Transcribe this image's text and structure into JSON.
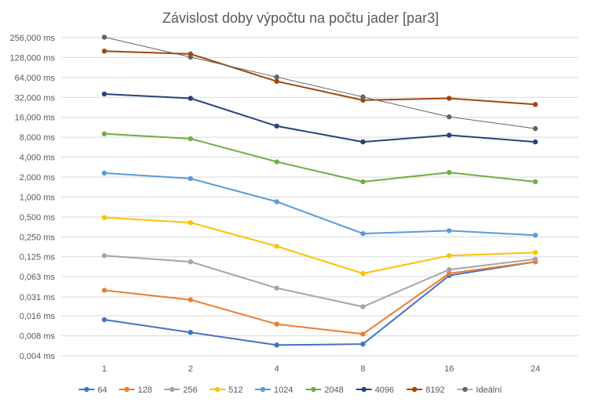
{
  "chart_data": {
    "type": "line",
    "title": "Závislost doby výpočtu na počtu jader [par3]",
    "yscale": "log2",
    "categories": [
      "1",
      "2",
      "4",
      "8",
      "16",
      "24"
    ],
    "y_ticks": [
      {
        "value": 0.004,
        "label": "0,004 ms"
      },
      {
        "value": 0.008,
        "label": "0,008 ms"
      },
      {
        "value": 0.016,
        "label": "0,016 ms"
      },
      {
        "value": 0.031,
        "label": "0,031 ms"
      },
      {
        "value": 0.063,
        "label": "0,063 ms"
      },
      {
        "value": 0.125,
        "label": "0,125 ms"
      },
      {
        "value": 0.25,
        "label": "0,250 ms"
      },
      {
        "value": 0.5,
        "label": "0,500 ms"
      },
      {
        "value": 1,
        "label": "1,000 ms"
      },
      {
        "value": 2,
        "label": "2,000 ms"
      },
      {
        "value": 4,
        "label": "4,000 ms"
      },
      {
        "value": 8,
        "label": "8,000 ms"
      },
      {
        "value": 16,
        "label": "16,000 ms"
      },
      {
        "value": 32,
        "label": "32,000 ms"
      },
      {
        "value": 64,
        "label": "64,000 ms"
      },
      {
        "value": 128,
        "label": "128,000 ms"
      },
      {
        "value": 256,
        "label": "256,000 ms"
      }
    ],
    "ylim": [
      0.004,
      256
    ],
    "grid": true,
    "legend_position": "bottom",
    "series": [
      {
        "name": "64",
        "color": "#4472c4",
        "width": 2,
        "values": [
          0.014,
          0.009,
          0.0058,
          0.006,
          0.065,
          0.105
        ]
      },
      {
        "name": "128",
        "color": "#ed7d31",
        "width": 2,
        "values": [
          0.039,
          0.028,
          0.012,
          0.0085,
          0.07,
          0.105
        ]
      },
      {
        "name": "256",
        "color": "#a5a5a5",
        "width": 2,
        "values": [
          0.13,
          0.105,
          0.042,
          0.022,
          0.08,
          0.115
        ]
      },
      {
        "name": "512",
        "color": "#ffc000",
        "width": 2,
        "values": [
          0.49,
          0.41,
          0.18,
          0.07,
          0.13,
          0.145
        ]
      },
      {
        "name": "1024",
        "color": "#5b9bd5",
        "width": 2,
        "values": [
          2.3,
          1.9,
          0.85,
          0.28,
          0.31,
          0.265
        ]
      },
      {
        "name": "2048",
        "color": "#70ad47",
        "width": 2,
        "values": [
          9.0,
          7.6,
          3.4,
          1.7,
          2.35,
          1.7
        ]
      },
      {
        "name": "4096",
        "color": "#264478",
        "width": 2,
        "values": [
          36,
          31,
          11.8,
          6.8,
          8.6,
          6.8
        ]
      },
      {
        "name": "8192",
        "color": "#9e480e",
        "width": 2,
        "values": [
          160,
          145,
          56,
          29,
          31,
          25
        ]
      },
      {
        "name": "Ideální",
        "color": "#636363",
        "width": 1,
        "values": [
          260,
          130,
          65,
          32.5,
          16.25,
          10.8
        ]
      }
    ]
  }
}
